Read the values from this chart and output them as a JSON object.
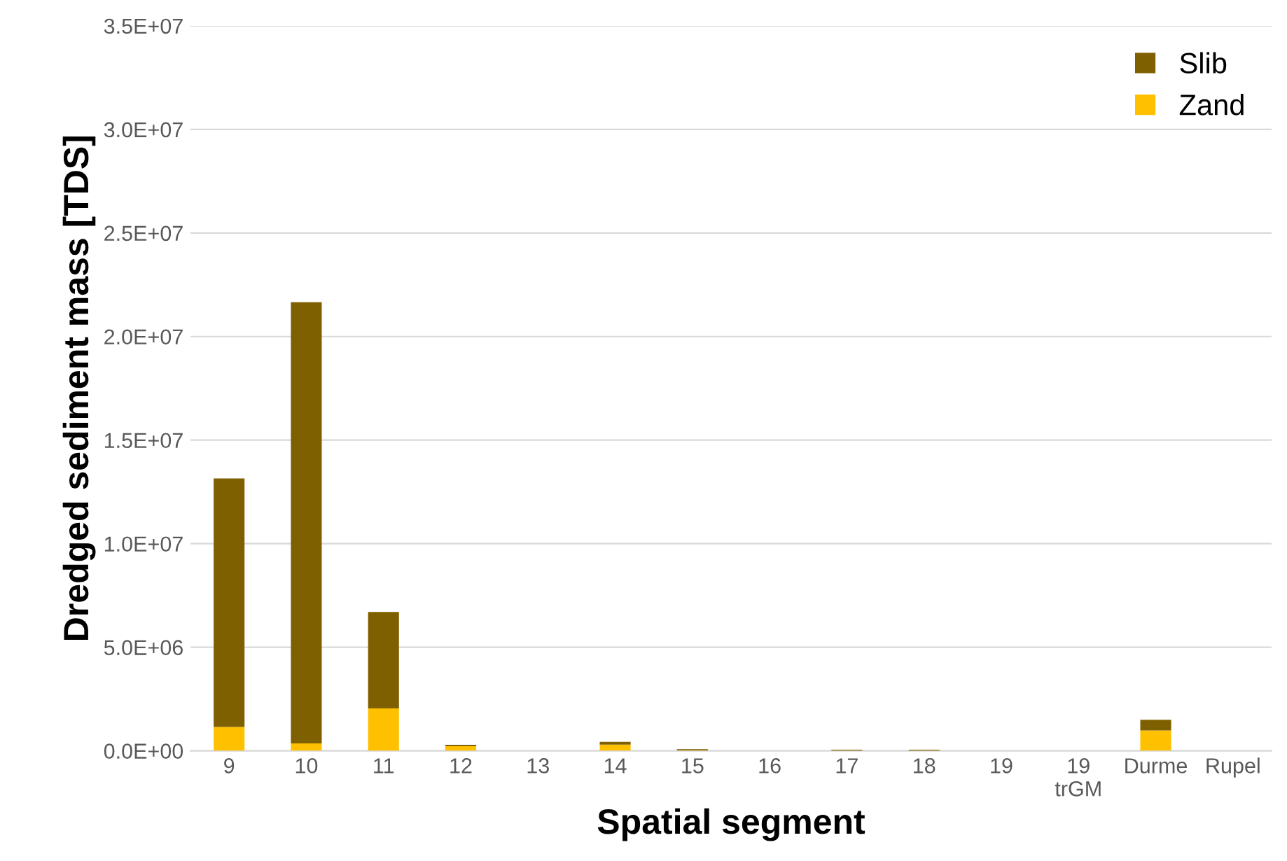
{
  "chart_data": {
    "type": "bar",
    "stacked": true,
    "xlabel": "Spatial segment",
    "ylabel": "Dredged sediment mass [TDS]",
    "categories": [
      "9",
      "10",
      "11",
      "12",
      "13",
      "14",
      "15",
      "16",
      "17",
      "18",
      "19",
      "19\ntrGM",
      "Durme",
      "Rupel"
    ],
    "series": [
      {
        "name": "Zand",
        "color": "#ffc000",
        "values": [
          1150000,
          360000,
          2050000,
          220000,
          0,
          300000,
          20000,
          0,
          0,
          0,
          0,
          0,
          980000,
          0
        ]
      },
      {
        "name": "Slib",
        "color": "#7f6000",
        "values": [
          12000000,
          21300000,
          4650000,
          70000,
          0,
          130000,
          60000,
          0,
          50000,
          50000,
          0,
          0,
          520000,
          0
        ]
      }
    ],
    "ylim": [
      0,
      35000000
    ],
    "yticks": [
      {
        "value": 0,
        "label": "0.0E+00"
      },
      {
        "value": 5000000,
        "label": "5.0E+06"
      },
      {
        "value": 10000000,
        "label": "1.0E+07"
      },
      {
        "value": 15000000,
        "label": "1.5E+07"
      },
      {
        "value": 20000000,
        "label": "2.0E+07"
      },
      {
        "value": 25000000,
        "label": "2.5E+07"
      },
      {
        "value": 30000000,
        "label": "3.0E+07"
      },
      {
        "value": 35000000,
        "label": "3.5E+07"
      }
    ],
    "grid": "y",
    "legend": "top right"
  }
}
